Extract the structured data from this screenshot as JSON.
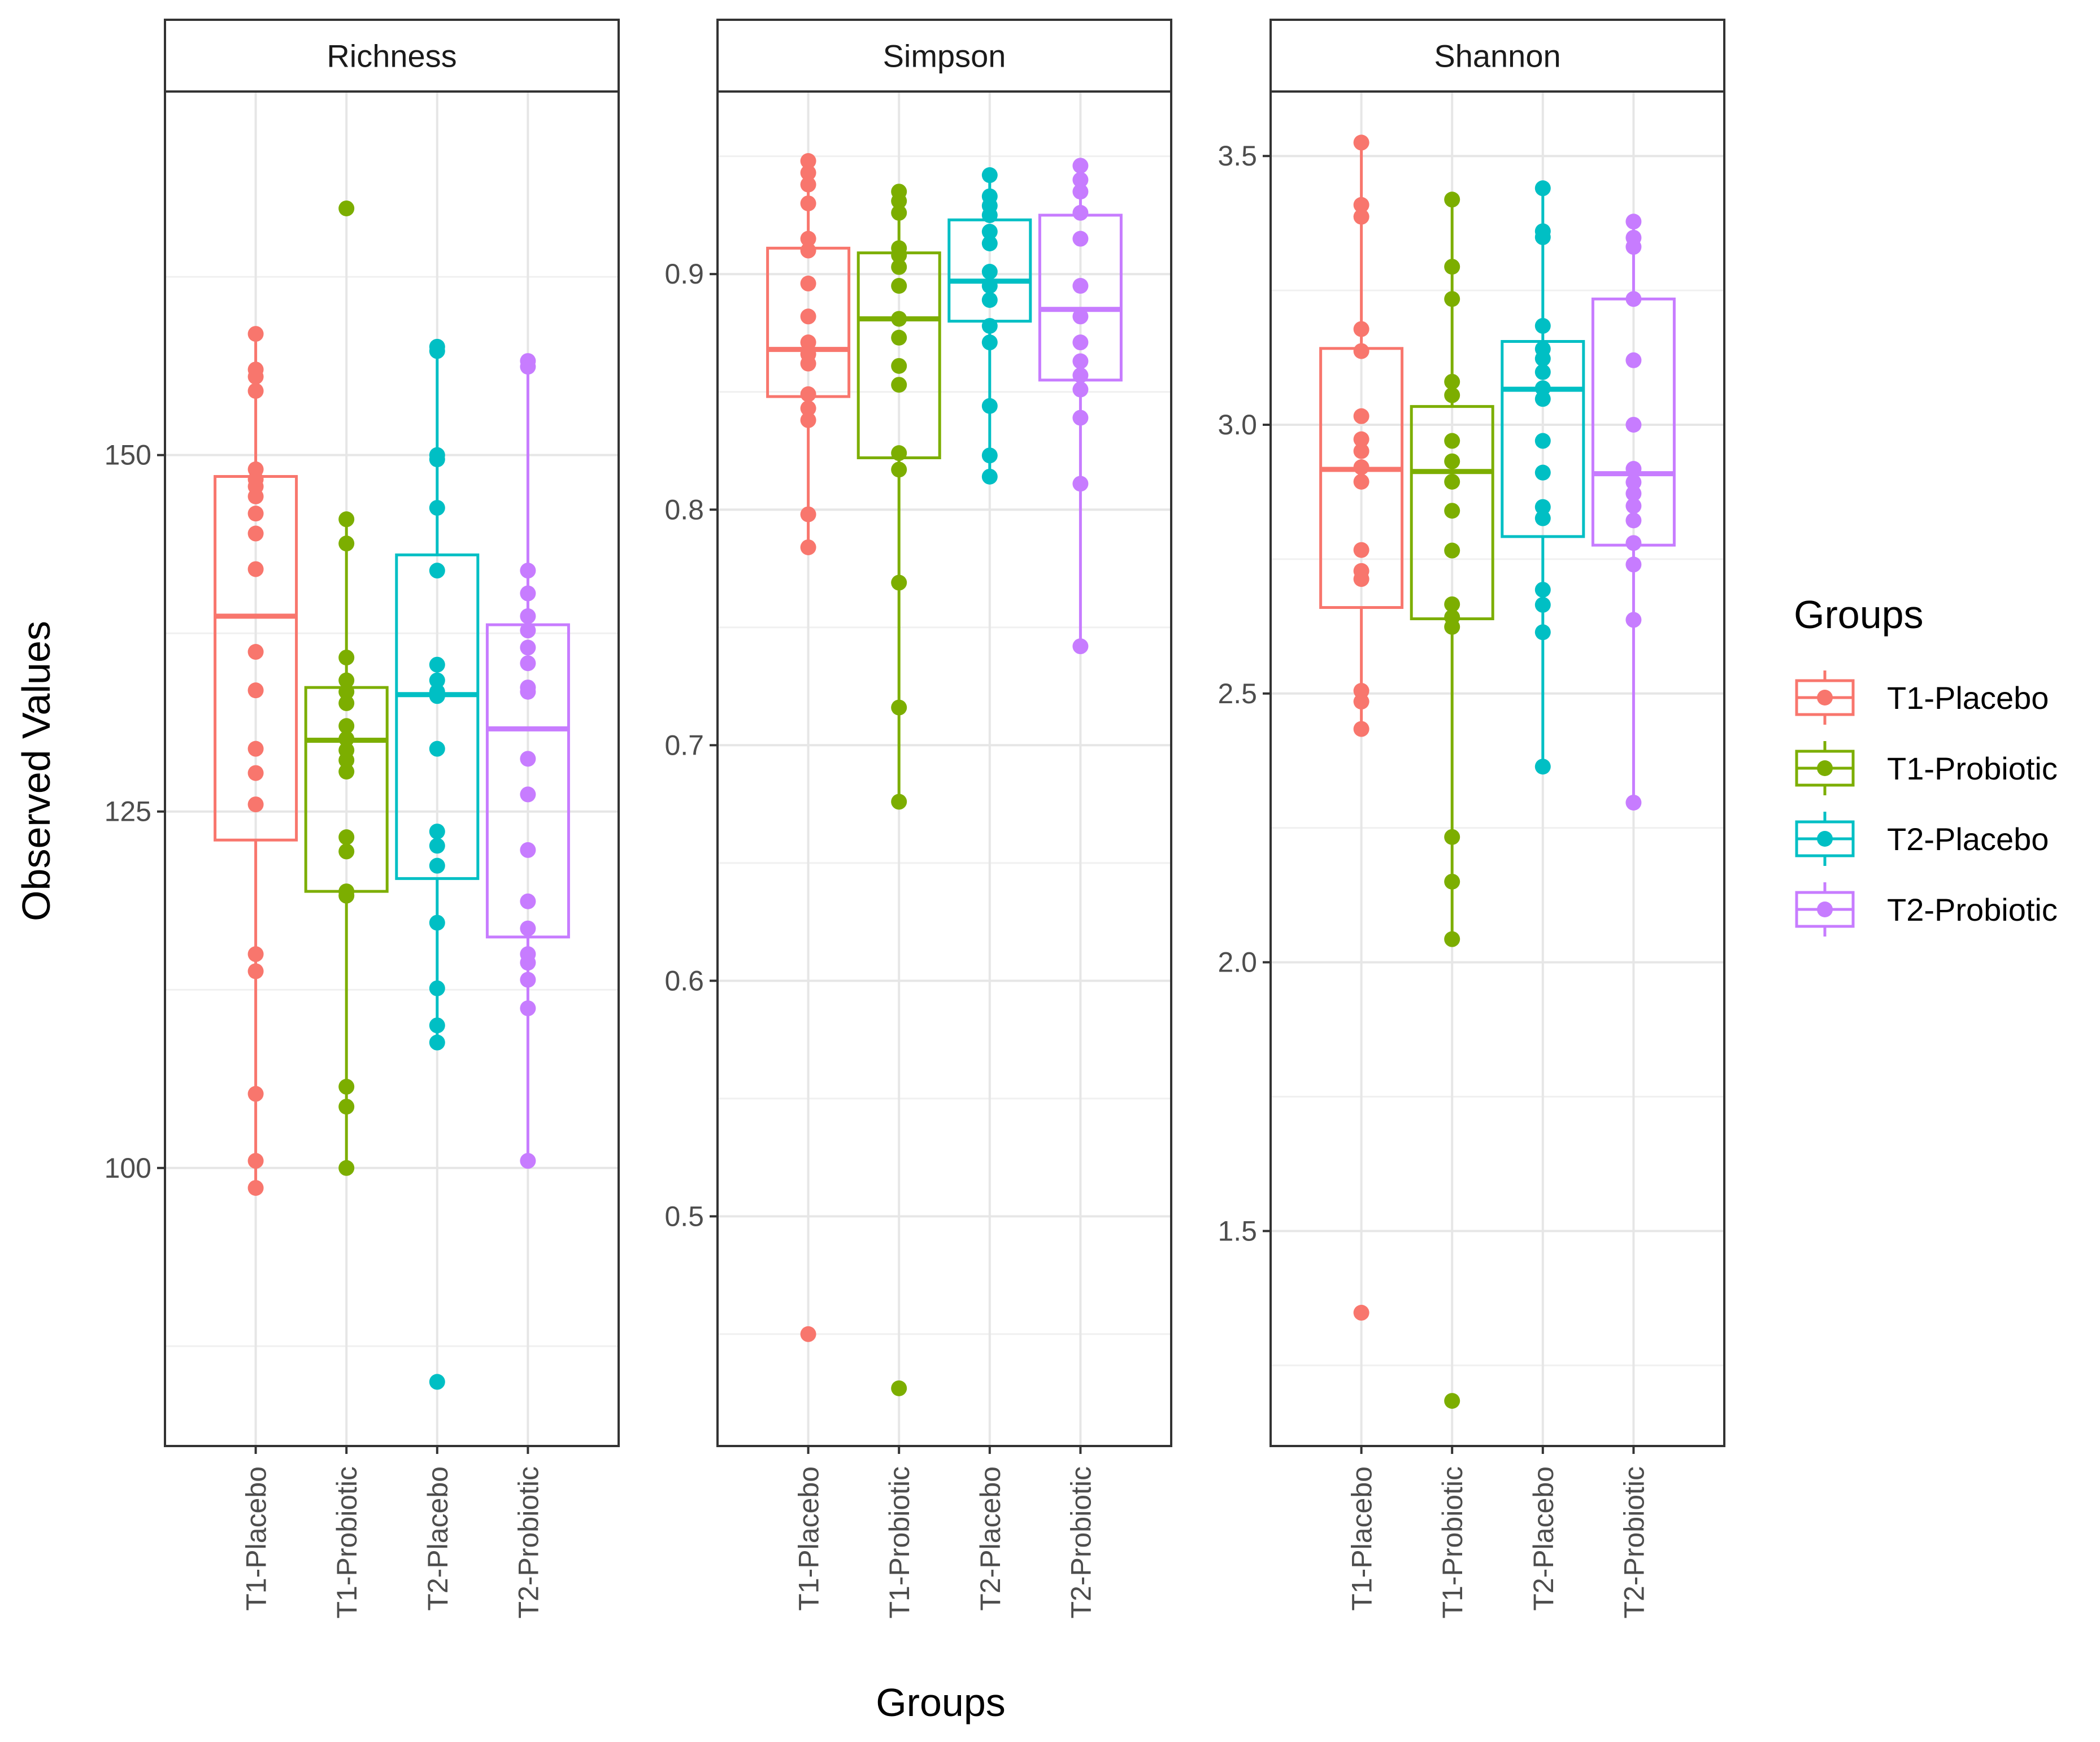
{
  "chart_data": {
    "type": "boxplot",
    "xlabel": "Groups",
    "ylabel": "Observed Values",
    "categories": [
      "T1-Placebo",
      "T1-Probiotic",
      "T2-Placebo",
      "T2-Probiotic"
    ],
    "legend": {
      "title": "Groups",
      "position": "right",
      "entries": [
        {
          "label": "T1-Placebo",
          "color": "#F8766D"
        },
        {
          "label": "T1-Probiotic",
          "color": "#7CAE00"
        },
        {
          "label": "T2-Placebo",
          "color": "#00BFC4"
        },
        {
          "label": "T2-Probiotic",
          "color": "#C77CFF"
        }
      ]
    },
    "panels": [
      {
        "title": "Richness",
        "ylim": [
          80.5,
          175.5
        ],
        "yticks": [
          100,
          125,
          150
        ],
        "ytick_labels": [
          "100",
          "125",
          "150"
        ],
        "minor_grid": [
          87.5,
          112.5,
          137.5,
          162.5
        ],
        "boxes": [
          {
            "q1": 123,
            "median": 138.7,
            "q3": 148.5,
            "wlo": 98.6,
            "whi": 158.5
          },
          {
            "q1": 119.4,
            "median": 130,
            "q3": 133.7,
            "wlo": 100,
            "whi": 145.5
          },
          {
            "q1": 120.3,
            "median": 133.2,
            "q3": 143,
            "wlo": 108.8,
            "whi": 157.5
          },
          {
            "q1": 116.2,
            "median": 130.8,
            "q3": 138.1,
            "wlo": 100.5,
            "whi": 156.5
          }
        ],
        "points": [
          [
            98.6,
            100.5,
            105.2,
            113.8,
            115,
            125.5,
            127.7,
            129.4,
            133.5,
            136.2,
            142,
            144.5,
            145.9,
            147.1,
            147.8,
            148.3,
            149,
            154.5,
            155.5,
            156,
            158.5
          ],
          [
            100,
            104.3,
            105.7,
            119.1,
            119.4,
            122.2,
            123.2,
            127.8,
            128.6,
            129.3,
            130.1,
            131,
            132.6,
            133.4,
            134.2,
            135.8,
            143.8,
            145.5,
            167.3
          ],
          [
            85,
            108.8,
            110,
            112.6,
            117.2,
            121.2,
            122.6,
            123.6,
            129.4,
            133.1,
            133.4,
            134.2,
            135.3,
            141.9,
            146.3,
            149.7,
            150,
            157.3,
            157.6
          ],
          [
            100.5,
            111.2,
            113.2,
            114.4,
            115,
            116.8,
            118.7,
            122.3,
            126.2,
            128.7,
            133.4,
            133.7,
            135.4,
            136.5,
            137.7,
            138.7,
            140.3,
            141.9,
            156.2,
            156.6
          ]
        ]
      },
      {
        "title": "Simpson",
        "ylim": [
          0.4025,
          0.9775
        ],
        "yticks": [
          0.5,
          0.6,
          0.7,
          0.8,
          0.9
        ],
        "ytick_labels": [
          "0.5",
          "0.6",
          "0.7",
          "0.8",
          "0.9"
        ],
        "minor_grid": [
          0.45,
          0.55,
          0.65,
          0.75,
          0.85,
          0.95
        ],
        "boxes": [
          {
            "q1": 0.848,
            "median": 0.868,
            "q3": 0.911,
            "wlo": 0.784,
            "whi": 0.948
          },
          {
            "q1": 0.822,
            "median": 0.881,
            "q3": 0.909,
            "wlo": 0.676,
            "whi": 0.935
          },
          {
            "q1": 0.88,
            "median": 0.897,
            "q3": 0.923,
            "wlo": 0.814,
            "whi": 0.942
          },
          {
            "q1": 0.855,
            "median": 0.885,
            "q3": 0.925,
            "wlo": 0.742,
            "whi": 0.946
          }
        ],
        "points": [
          [
            0.45,
            0.784,
            0.798,
            0.838,
            0.843,
            0.849,
            0.862,
            0.866,
            0.871,
            0.882,
            0.896,
            0.91,
            0.915,
            0.93,
            0.938,
            0.943,
            0.948
          ],
          [
            0.427,
            0.676,
            0.716,
            0.769,
            0.817,
            0.824,
            0.853,
            0.861,
            0.873,
            0.881,
            0.895,
            0.903,
            0.908,
            0.911,
            0.926,
            0.931,
            0.935
          ],
          [
            0.814,
            0.823,
            0.844,
            0.871,
            0.878,
            0.889,
            0.895,
            0.901,
            0.913,
            0.918,
            0.925,
            0.929,
            0.933,
            0.942
          ],
          [
            0.742,
            0.811,
            0.839,
            0.851,
            0.857,
            0.863,
            0.871,
            0.882,
            0.895,
            0.915,
            0.926,
            0.935,
            0.94,
            0.946
          ]
        ]
      },
      {
        "title": "Shannon",
        "ylim": [
          1.1,
          3.62
        ],
        "yticks": [
          1.5,
          2.0,
          2.5,
          3.0,
          3.5
        ],
        "ytick_labels": [
          "1.5",
          "2.0",
          "2.5",
          "3.0",
          "3.5"
        ],
        "minor_grid": [
          1.25,
          1.75,
          2.25,
          2.75,
          3.25
        ],
        "boxes": [
          {
            "q1": 2.66,
            "median": 2.917,
            "q3": 3.142,
            "wlo": 2.434,
            "whi": 3.525
          },
          {
            "q1": 2.639,
            "median": 2.913,
            "q3": 3.034,
            "wlo": 2.043,
            "whi": 3.419
          },
          {
            "q1": 2.792,
            "median": 3.066,
            "q3": 3.155,
            "wlo": 2.364,
            "whi": 3.44
          },
          {
            "q1": 2.776,
            "median": 2.909,
            "q3": 3.234,
            "wlo": 2.297,
            "whi": 3.378
          }
        ],
        "points": [
          [
            1.348,
            2.434,
            2.485,
            2.505,
            2.713,
            2.728,
            2.767,
            2.894,
            2.921,
            2.951,
            2.973,
            3.016,
            3.137,
            3.178,
            3.387,
            3.409,
            3.525
          ],
          [
            1.184,
            2.043,
            2.15,
            2.233,
            2.624,
            2.642,
            2.666,
            2.766,
            2.84,
            2.894,
            2.932,
            2.97,
            3.055,
            3.08,
            3.234,
            3.294,
            3.419
          ],
          [
            2.364,
            2.614,
            2.665,
            2.693,
            2.826,
            2.847,
            2.911,
            2.97,
            3.048,
            3.068,
            3.098,
            3.123,
            3.141,
            3.184,
            3.349,
            3.36,
            3.44
          ],
          [
            2.297,
            2.637,
            2.74,
            2.78,
            2.822,
            2.849,
            2.872,
            2.893,
            2.918,
            3.0,
            3.12,
            3.234,
            3.331,
            3.348,
            3.378
          ]
        ]
      }
    ]
  }
}
